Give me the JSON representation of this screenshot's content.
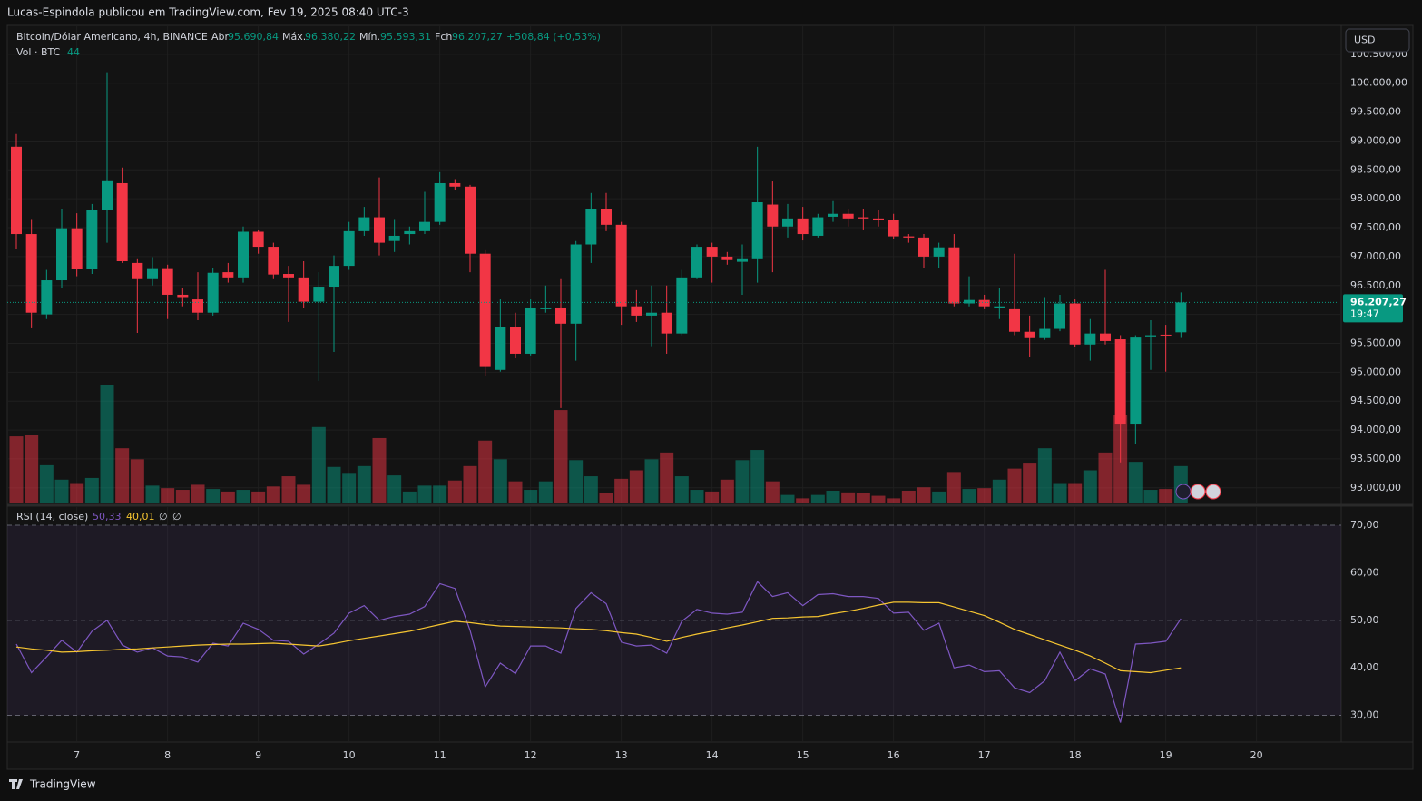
{
  "header": {
    "publisher": "Lucas-Espindola publicou em TradingView.com, Fev 19, 2025 08:40 UTC-3",
    "footer_brand": "TradingView",
    "currency": "USD"
  },
  "chart_data": [
    {
      "type": "candlestick",
      "title": "Bitcoin/Dólar Americano, 4h, BINANCE",
      "ohlc_legend": {
        "open_label": "Abr",
        "open": "95.690,84",
        "high_label": "Máx.",
        "high": "96.380,22",
        "low_label": "Mín.",
        "low": "95.593,31",
        "close_label": "Fch",
        "close": "96.207,27",
        "change": "+508,84 (+0,53%)"
      },
      "up_color": "#089981",
      "down_color": "#f23645",
      "last_price_label": "96.207,27",
      "countdown": "19:47",
      "categories": [
        null,
        null,
        null,
        null,
        "7",
        null,
        null,
        null,
        null,
        null,
        "8",
        null,
        null,
        null,
        null,
        null,
        "9",
        null,
        null,
        null,
        null,
        null,
        "10",
        null,
        null,
        null,
        null,
        null,
        "11",
        null,
        null,
        null,
        null,
        null,
        "12",
        null,
        null,
        null,
        null,
        null,
        "13",
        null,
        null,
        null,
        null,
        null,
        "14",
        null,
        null,
        null,
        null,
        null,
        "15",
        null,
        null,
        null,
        null,
        null,
        "16",
        null,
        null,
        null,
        null,
        null,
        "17",
        null,
        null,
        null,
        null,
        null,
        "18",
        null,
        null,
        null,
        null,
        null,
        "19",
        null,
        null,
        null,
        null,
        null,
        "20"
      ],
      "open": [
        98900,
        97390,
        96000,
        96590,
        97490,
        96780,
        97800,
        98270,
        96890,
        96610,
        96800,
        96340,
        96260,
        96030,
        96730,
        96640,
        97430,
        97170,
        96700,
        96640,
        96220,
        96480,
        96840,
        97440,
        97680,
        97270,
        97390,
        97440,
        97600,
        98270,
        98210,
        97050,
        95040,
        95780,
        95320,
        96090,
        96120,
        95840,
        97210,
        97830,
        97550,
        96140,
        95980,
        96030,
        95670,
        96640,
        97170,
        97000,
        96910,
        96970,
        97900,
        97520,
        97660,
        97360,
        97690,
        97740,
        97680,
        97660,
        97630,
        97350,
        97330,
        97000,
        97160,
        96190,
        96250,
        96110,
        96090,
        95700,
        95590,
        95750,
        96190,
        95480,
        95670,
        95570,
        94110,
        95620,
        95650,
        95690.84,
        null,
        null,
        null,
        null,
        null
      ],
      "high": [
        99120,
        97650,
        96770,
        97830,
        97750,
        97910,
        100190,
        98540,
        96970,
        96990,
        96860,
        96450,
        96730,
        96810,
        96890,
        97520,
        97460,
        97240,
        96840,
        96920,
        96730,
        97020,
        97600,
        97860,
        98370,
        97650,
        97520,
        98120,
        98460,
        98340,
        98240,
        97110,
        96260,
        96030,
        96260,
        96500,
        96610,
        97270,
        98100,
        98100,
        97600,
        96420,
        96500,
        96500,
        96770,
        97210,
        97240,
        97080,
        97210,
        98900,
        98300,
        97910,
        97860,
        97740,
        97960,
        97830,
        97830,
        97800,
        97740,
        97390,
        97390,
        97240,
        97390,
        96660,
        96340,
        96450,
        97050,
        95980,
        96300,
        96340,
        96260,
        95920,
        96770,
        95640,
        95640,
        95900,
        95820,
        96380.22,
        null,
        null,
        null,
        null,
        null
      ],
      "low": [
        97130,
        95760,
        95920,
        96450,
        96660,
        96700,
        97240,
        96890,
        95680,
        96500,
        95920,
        96140,
        95900,
        95980,
        96550,
        96550,
        97050,
        96610,
        95870,
        96110,
        94850,
        95350,
        96770,
        97360,
        97020,
        97080,
        97210,
        97390,
        97550,
        98150,
        96730,
        94930,
        95010,
        95240,
        95290,
        96030,
        94380,
        95200,
        96890,
        97440,
        95820,
        95870,
        95450,
        95320,
        95640,
        96610,
        96550,
        96860,
        96340,
        96550,
        96730,
        97330,
        97280,
        97330,
        97600,
        97520,
        97470,
        97520,
        97300,
        97240,
        96810,
        96810,
        96140,
        96140,
        96090,
        95920,
        95640,
        95270,
        95560,
        95710,
        95430,
        95200,
        95480,
        93440,
        93750,
        95040,
        95010,
        95593.31,
        null,
        null,
        null,
        null,
        null
      ],
      "close": [
        97390,
        96030,
        96590,
        97490,
        96780,
        97800,
        98320,
        96920,
        96610,
        96800,
        96340,
        96300,
        96030,
        96720,
        96640,
        97430,
        97170,
        96690,
        96640,
        96220,
        96480,
        96840,
        97440,
        97680,
        97240,
        97360,
        97440,
        97600,
        98270,
        98210,
        97050,
        95090,
        95780,
        95320,
        96120,
        96120,
        95840,
        97210,
        97830,
        97550,
        96140,
        95980,
        96030,
        95670,
        96640,
        97170,
        97000,
        96940,
        96970,
        97940,
        97520,
        97660,
        97390,
        97680,
        97740,
        97660,
        97660,
        97630,
        97350,
        97330,
        97000,
        97160,
        96190,
        96250,
        96140,
        96140,
        95700,
        95590,
        95750,
        96190,
        95480,
        95670,
        95540,
        94110,
        95600,
        95640,
        95640,
        96207.27,
        null,
        null,
        null,
        null,
        null
      ],
      "volume": {
        "title": "Vol · BTC",
        "last_label": "44",
        "values": [
          79,
          81,
          45,
          28,
          24,
          30,
          140,
          65,
          52,
          21,
          18,
          16,
          22,
          17,
          14,
          16,
          14,
          20,
          32,
          22,
          90,
          43,
          36,
          44,
          77,
          33,
          14,
          21,
          21,
          27,
          44,
          74,
          52,
          26,
          16,
          26,
          110,
          51,
          32,
          12,
          29,
          39,
          52,
          60,
          32,
          16,
          14,
          28,
          51,
          63,
          26,
          10,
          6,
          10,
          15,
          13,
          12,
          9,
          6,
          15,
          19,
          14,
          37,
          17,
          18,
          28,
          41,
          48,
          65,
          24,
          24,
          39,
          60,
          104,
          49,
          16,
          17,
          44,
          null,
          null,
          null,
          null,
          null
        ]
      },
      "ylim": [
        92730,
        101000
      ],
      "yticks": [
        {
          "value": 93000,
          "label": "93.000,00"
        },
        {
          "value": 93500,
          "label": "93.500,00"
        },
        {
          "value": 94000,
          "label": "94.000,00"
        },
        {
          "value": 94500,
          "label": "94.500,00"
        },
        {
          "value": 95000,
          "label": "95.000,00"
        },
        {
          "value": 95500,
          "label": "95.500,00"
        },
        {
          "value": 96000,
          "label": "96.000,00"
        },
        {
          "value": 96500,
          "label": "96.500,00"
        },
        {
          "value": 97000,
          "label": "97.000,00"
        },
        {
          "value": 97500,
          "label": "97.500,00"
        },
        {
          "value": 98000,
          "label": "98.000,00"
        },
        {
          "value": 98500,
          "label": "98.500,00"
        },
        {
          "value": 99000,
          "label": "99.000,00"
        },
        {
          "value": 99500,
          "label": "99.500,00"
        },
        {
          "value": 100000,
          "label": "100.000,00"
        },
        {
          "value": 100500,
          "label": "100.500,00"
        }
      ],
      "grid": true
    },
    {
      "type": "line",
      "title": "RSI (14, close)",
      "extra_labels": [
        "∅",
        "∅"
      ],
      "series": [
        {
          "color": "#7e57c2",
          "last_label": "50,33",
          "values": [
            45,
            39.0,
            42.3,
            45.8,
            43.3,
            47.7,
            50.0,
            44.8,
            43.3,
            44.2,
            42.5,
            42.3,
            41.2,
            45.2,
            44.6,
            49.4,
            48.1,
            45.8,
            45.6,
            42.9,
            45.0,
            47.3,
            51.5,
            53.1,
            50.0,
            50.8,
            51.3,
            52.9,
            57.7,
            56.7,
            47.9,
            36.0,
            41.0,
            38.8,
            44.6,
            44.6,
            43.1,
            52.5,
            55.8,
            53.5,
            45.4,
            44.6,
            44.8,
            43.1,
            49.8,
            52.3,
            51.5,
            51.3,
            51.7,
            58.1,
            55.0,
            55.8,
            53.1,
            55.4,
            55.6,
            55.0,
            55.0,
            54.6,
            51.5,
            51.7,
            47.9,
            49.4,
            40.0,
            40.6,
            39.2,
            39.4,
            35.8,
            34.8,
            37.3,
            43.3,
            37.3,
            39.8,
            38.7,
            28.5,
            45.0,
            45.2,
            45.6,
            50.33,
            null,
            null,
            null,
            null,
            null
          ]
        },
        {
          "color": "#f7c631",
          "last_label": "40,01",
          "values": [
            44.4,
            44.0,
            43.7,
            43.3,
            43.4,
            43.6,
            43.7,
            43.9,
            44.0,
            44.2,
            44.4,
            44.6,
            44.8,
            44.9,
            45.0,
            45.0,
            45.1,
            45.2,
            45.0,
            44.8,
            44.6,
            45.1,
            45.7,
            46.2,
            46.7,
            47.2,
            47.7,
            48.4,
            49.1,
            49.8,
            49.5,
            49.1,
            48.8,
            48.7,
            48.6,
            48.5,
            48.4,
            48.2,
            48.1,
            47.8,
            47.4,
            47.1,
            46.4,
            45.6,
            46.4,
            47.1,
            47.7,
            48.4,
            49.0,
            49.7,
            50.4,
            50.5,
            50.7,
            50.8,
            51.4,
            51.9,
            52.5,
            53.2,
            53.8,
            53.8,
            53.7,
            53.7,
            52.8,
            51.9,
            51.0,
            49.6,
            48.1,
            47.0,
            45.9,
            44.8,
            43.7,
            42.5,
            41.0,
            39.4,
            39.2,
            39.0,
            39.5,
            40.01,
            null,
            null,
            null,
            null,
            null
          ]
        }
      ],
      "ylim": [
        24.4,
        74
      ],
      "yticks": [
        {
          "value": 30,
          "label": "30,00"
        },
        {
          "value": 40,
          "label": "40,00"
        },
        {
          "value": 50,
          "label": "50,00"
        },
        {
          "value": 60,
          "label": "60,00"
        },
        {
          "value": 70,
          "label": "70,00"
        }
      ],
      "dashed_levels": [
        70,
        50,
        30
      ],
      "band": [
        30,
        70
      ],
      "band_color": "#7e57c2"
    }
  ]
}
